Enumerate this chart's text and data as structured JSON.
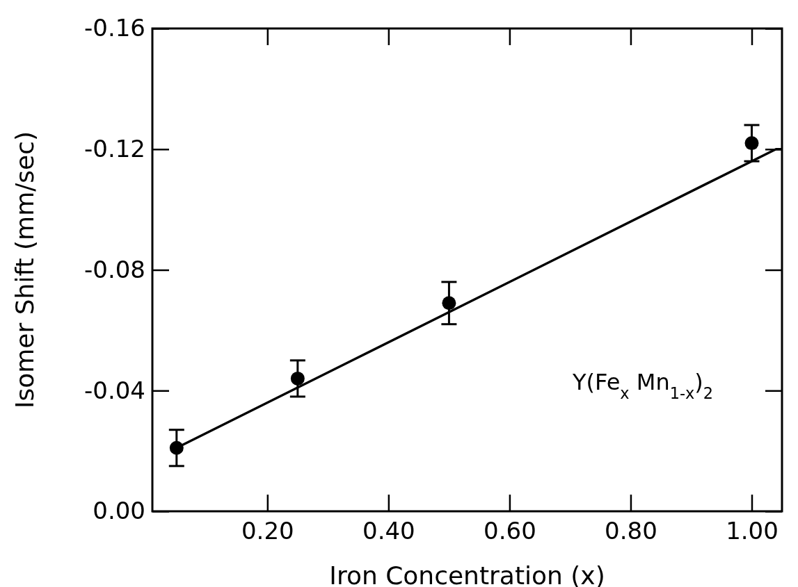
{
  "chart_data": {
    "type": "scatter",
    "xlabel": "Iron Concentration (x)",
    "ylabel": "Isomer Shift (mm/sec)",
    "xlim": [
      0.01,
      1.05
    ],
    "ylim": [
      0,
      -0.16
    ],
    "xticks": [
      {
        "value": 0.2,
        "label": "0.20"
      },
      {
        "value": 0.4,
        "label": "0.40"
      },
      {
        "value": 0.6,
        "label": "0.60"
      },
      {
        "value": 0.8,
        "label": "0.80"
      },
      {
        "value": 1.0,
        "label": "1.00"
      }
    ],
    "yticks": [
      {
        "value": 0,
        "label": "0.00"
      },
      {
        "value": -0.04,
        "label": "-0.04"
      },
      {
        "value": -0.08,
        "label": "-0.08"
      },
      {
        "value": -0.12,
        "label": "-0.12"
      },
      {
        "value": -0.16,
        "label": "-0.16"
      }
    ],
    "grid": false,
    "annotations": [
      "Y(Fe$_{x}$ Mn$_{1-x}$)$_{2}$"
    ],
    "series": [
      {
        "color": "#000000",
        "marker": "circle",
        "x": [
          0.05,
          0.25,
          0.5,
          1.0
        ],
        "values": [
          -0.021,
          -0.044,
          -0.069,
          -0.122
        ],
        "errors": [
          0.006,
          0.006,
          0.007,
          0.006
        ]
      },
      {
        "type": "line",
        "color": "#000000",
        "line_style": "solid",
        "x": [
          0.05,
          1.04,
          1.05
        ],
        "values": [
          -0.021,
          -0.12,
          -0.12
        ]
      }
    ]
  }
}
